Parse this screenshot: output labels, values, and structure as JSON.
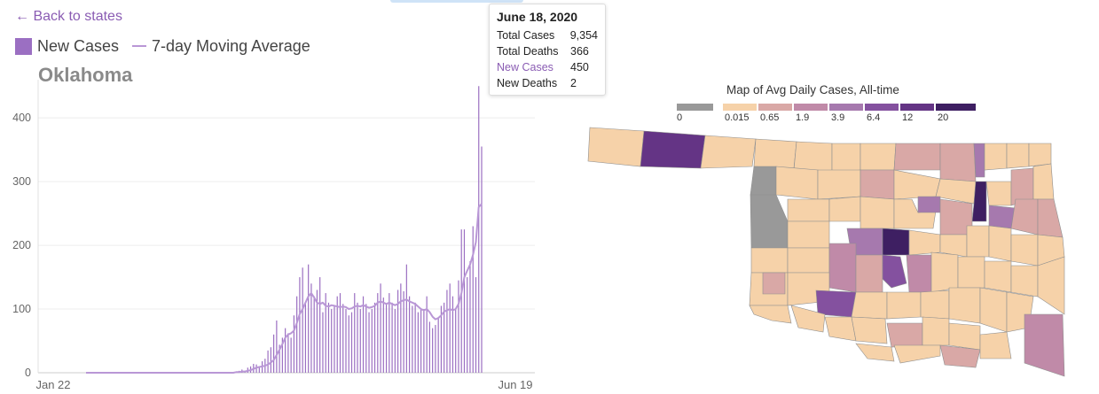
{
  "nav": {
    "back_label": "← Back to states"
  },
  "legend": {
    "new_cases_label": "New Cases",
    "moving_avg_label": "7-day Moving Average",
    "new_cases_color": "#9b6fc2",
    "moving_avg_color": "#b997d6"
  },
  "state_name": "Oklahoma",
  "tooltip": {
    "date": "June 18, 2020",
    "rows": [
      {
        "label": "Total Cases",
        "value": "9,354"
      },
      {
        "label": "Total Deaths",
        "value": "366"
      },
      {
        "label": "New Cases",
        "value": "450"
      },
      {
        "label": "New Deaths",
        "value": "2"
      }
    ]
  },
  "chart_data": {
    "type": "bar",
    "title": "Oklahoma",
    "x_tick_labels": [
      "Jan 22",
      "Jun 19"
    ],
    "y_ticks": [
      0,
      100,
      200,
      300,
      400
    ],
    "ylim": [
      0,
      460
    ],
    "grid": true,
    "series": [
      {
        "name": "New Cases",
        "x_start": "Jan 22",
        "x_end": "Jun 18",
        "values": [
          0,
          0,
          0,
          0,
          0,
          0,
          0,
          0,
          0,
          0,
          0,
          0,
          0,
          0,
          0,
          0,
          0,
          0,
          0,
          0,
          0,
          0,
          0,
          0,
          0,
          0,
          0,
          0,
          0,
          0,
          0,
          0,
          0,
          0,
          0,
          0,
          0,
          0,
          0,
          0,
          0,
          0,
          0,
          0,
          0,
          0,
          0,
          0,
          0,
          0,
          1,
          1,
          2,
          3,
          5,
          2,
          8,
          10,
          14,
          13,
          10,
          18,
          22,
          35,
          40,
          60,
          82,
          44,
          55,
          70,
          62,
          55,
          90,
          120,
          150,
          165,
          110,
          170,
          140,
          120,
          130,
          150,
          95,
          125,
          110,
          100,
          105,
          120,
          125,
          108,
          100,
          90,
          95,
          125,
          110,
          100,
          120,
          108,
          95,
          100,
          110,
          125,
          140,
          118,
          108,
          125,
          110,
          100,
          130,
          140,
          128,
          170,
          120,
          105,
          110,
          95,
          100,
          100,
          120,
          80,
          70,
          75,
          85,
          105,
          110,
          130,
          140,
          120,
          100,
          145,
          225,
          225,
          150,
          175,
          230,
          150,
          450,
          355
        ]
      },
      {
        "name": "7-day Moving Average",
        "x_start": "Jan 22",
        "x_end": "Jun 18",
        "values": [
          0,
          0,
          0,
          0,
          0,
          0,
          0,
          0,
          0,
          0,
          0,
          0,
          0,
          0,
          0,
          0,
          0,
          0,
          0,
          0,
          0,
          0,
          0,
          0,
          0,
          0,
          0,
          0,
          0,
          0,
          0,
          0,
          0,
          0,
          0,
          0,
          0,
          0,
          0,
          0,
          0,
          0,
          0,
          0,
          0,
          0,
          0,
          0,
          0,
          0,
          0,
          0,
          1,
          1,
          2,
          2,
          3,
          4,
          6,
          8,
          9,
          10,
          11,
          13,
          16,
          20,
          28,
          36,
          45,
          55,
          60,
          62,
          66,
          78,
          92,
          100,
          110,
          120,
          125,
          118,
          110,
          108,
          110,
          105,
          104,
          106,
          105,
          104,
          103,
          104,
          103,
          100,
          101,
          104,
          105,
          104,
          106,
          104,
          102,
          103,
          105,
          110,
          112,
          110,
          108,
          110,
          108,
          106,
          108,
          112,
          114,
          115,
          112,
          110,
          108,
          104,
          100,
          98,
          100,
          95,
          88,
          84,
          86,
          90,
          96,
          98,
          100,
          98,
          100,
          108,
          125,
          150,
          160,
          170,
          185,
          205,
          260,
          265
        ]
      }
    ]
  },
  "map": {
    "title": "Map of Avg Daily Cases, All-time",
    "legend": [
      {
        "label": "0",
        "color": "#999999"
      },
      {
        "label": "0.015",
        "color": "#f6d2a9"
      },
      {
        "label": "0.65",
        "color": "#d9a8a6"
      },
      {
        "label": "1.9",
        "color": "#c08aa8"
      },
      {
        "label": "3.9",
        "color": "#a679ae"
      },
      {
        "label": "6.4",
        "color": "#84519f"
      },
      {
        "label": "12",
        "color": "#643485"
      },
      {
        "label": "20",
        "color": "#3e1f62"
      }
    ]
  }
}
